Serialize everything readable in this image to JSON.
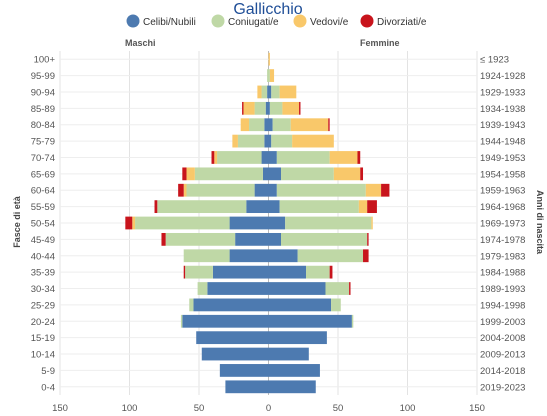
{
  "chart_data": {
    "type": "bar",
    "orientation": "horizontal-pyramid",
    "title": "Gallicchio",
    "left_label": "Maschi",
    "right_label": "Femmine",
    "y_left_label": "Fasce di età",
    "y_right_label": "Anni di nascita",
    "age_groups": [
      "100+",
      "95-99",
      "90-94",
      "85-89",
      "80-84",
      "75-79",
      "70-74",
      "65-69",
      "60-64",
      "55-59",
      "50-54",
      "45-49",
      "40-44",
      "35-39",
      "30-34",
      "25-29",
      "20-24",
      "15-19",
      "10-14",
      "5-9",
      "0-4"
    ],
    "birth_years": [
      "≤ 1923",
      "1924-1928",
      "1929-1933",
      "1934-1938",
      "1939-1943",
      "1944-1948",
      "1949-1953",
      "1954-1958",
      "1959-1963",
      "1964-1968",
      "1969-1973",
      "1974-1978",
      "1979-1983",
      "1984-1988",
      "1989-1993",
      "1994-1998",
      "1999-2003",
      "2004-2008",
      "2009-2013",
      "2014-2018",
      "2019-2023"
    ],
    "x_ticks": [
      "150",
      "100",
      "50",
      "0",
      "50",
      "100",
      "150"
    ],
    "xlim": [
      -150,
      150
    ],
    "grid": true,
    "legend_position": "top",
    "colors": {
      "celibi": "#4d7ab0",
      "coniugati": "#bfd8a6",
      "vedovi": "#f9c86a",
      "divorziati": "#c8141c"
    },
    "legend": {
      "celibi": "Celibi/Nubili",
      "coniugati": "Coniugati/e",
      "vedovi": "Vedovi/e",
      "divorziati": "Divorziati/e"
    },
    "male": {
      "celibi": [
        0,
        0,
        1,
        2,
        3,
        3,
        5,
        4,
        10,
        16,
        28,
        24,
        28,
        40,
        44,
        54,
        62,
        52,
        48,
        35,
        31
      ],
      "coniugati": [
        0,
        1,
        4,
        8,
        11,
        19,
        32,
        49,
        49,
        64,
        68,
        50,
        33,
        20,
        7,
        3,
        1,
        0,
        0,
        0,
        0
      ],
      "vedovi": [
        0,
        0,
        3,
        8,
        6,
        4,
        2,
        6,
        2,
        0,
        2,
        0,
        0,
        0,
        0,
        0,
        0,
        0,
        0,
        0,
        0
      ],
      "divorziati": [
        0,
        0,
        0,
        1,
        0,
        0,
        2,
        3,
        4,
        2,
        5,
        3,
        0,
        1,
        0,
        0,
        0,
        0,
        0,
        0,
        0
      ]
    },
    "female": {
      "celibi": [
        0,
        0,
        2,
        1,
        3,
        2,
        6,
        9,
        6,
        8,
        12,
        9,
        21,
        27,
        41,
        45,
        60,
        42,
        29,
        37,
        34
      ],
      "coniugati": [
        0,
        1,
        6,
        9,
        13,
        15,
        38,
        38,
        64,
        57,
        62,
        62,
        47,
        17,
        17,
        7,
        1,
        0,
        0,
        0,
        0
      ],
      "vedovi": [
        1,
        3,
        12,
        12,
        27,
        30,
        20,
        19,
        11,
        6,
        1,
        0,
        0,
        0,
        0,
        0,
        0,
        0,
        0,
        0,
        0
      ],
      "divorziati": [
        0,
        0,
        0,
        1,
        1,
        0,
        2,
        2,
        6,
        7,
        0,
        1,
        4,
        2,
        1,
        0,
        0,
        0,
        0,
        0,
        0
      ]
    }
  }
}
